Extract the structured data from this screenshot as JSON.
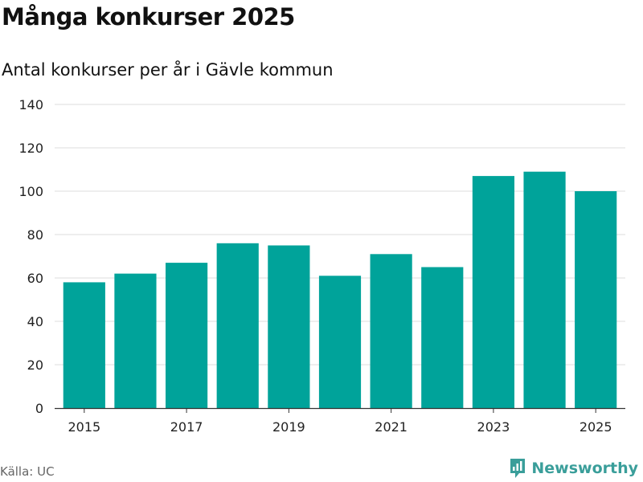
{
  "title": "Många konkurser 2025",
  "subtitle": "Antal konkurser per år i Gävle kommun",
  "source": "Källa: UC",
  "brand": {
    "name": "Newsworthy",
    "icon": "newsworthy-logo-icon",
    "color": "#3a9e9a"
  },
  "colors": {
    "bar": "#00a39a",
    "grid": "#dddddd",
    "axis": "#333333",
    "tick_text": "#222222"
  },
  "chart_data": {
    "type": "bar",
    "categories": [
      "2015",
      "2016",
      "2017",
      "2018",
      "2019",
      "2020",
      "2021",
      "2022",
      "2023",
      "2024",
      "2025"
    ],
    "values": [
      58,
      62,
      67,
      76,
      75,
      61,
      71,
      65,
      107,
      109,
      100
    ],
    "xtick_labels": [
      "2015",
      "2017",
      "2019",
      "2021",
      "2023",
      "2025"
    ],
    "ylim": [
      0,
      140
    ],
    "yticks": [
      0,
      20,
      40,
      60,
      80,
      100,
      120,
      140
    ],
    "grid": true,
    "xlabel": "",
    "ylabel": ""
  }
}
